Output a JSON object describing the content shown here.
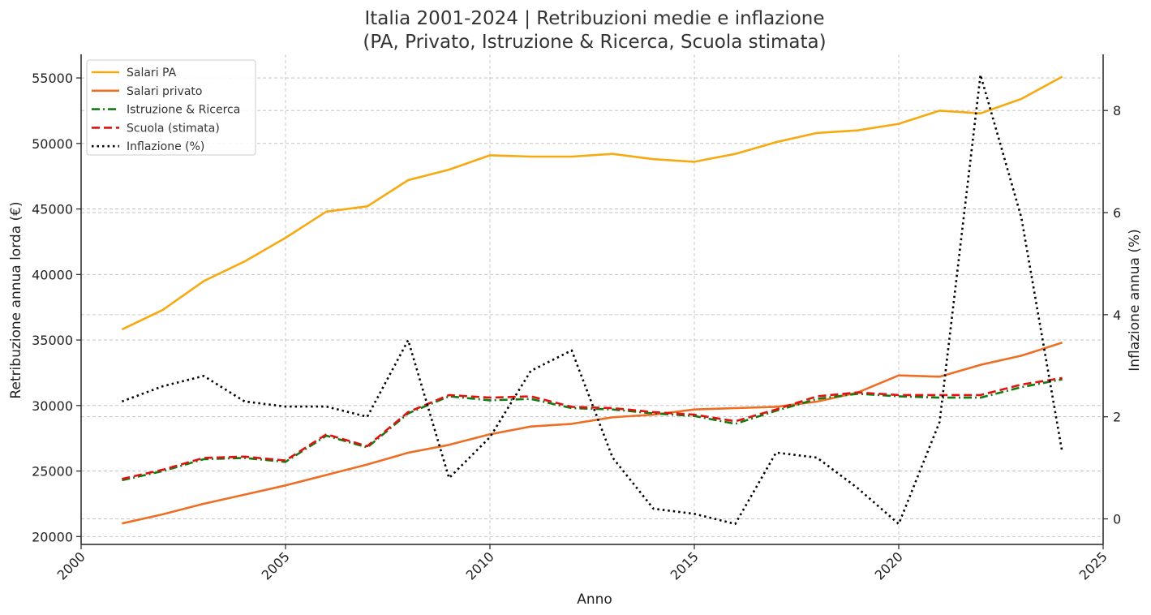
{
  "chart_data": {
    "type": "line",
    "title": "Italia 2001-2024 | Retribuzioni medie e inflazione",
    "subtitle": "(PA, Privato, Istruzione & Ricerca, Scuola stimata)",
    "xlabel": "Anno",
    "ylabel": "Retribuzione annua lorda (€)",
    "y2label": "Inflazione annua (%)",
    "xlim": [
      2000,
      2025
    ],
    "ylim": [
      19400,
      56800
    ],
    "y2lim": [
      -0.5,
      9.1
    ],
    "x_ticks": [
      2000,
      2005,
      2010,
      2015,
      2020,
      2025
    ],
    "y_ticks": [
      20000,
      25000,
      30000,
      35000,
      40000,
      45000,
      50000,
      55000
    ],
    "y2_ticks": [
      0,
      2,
      4,
      6,
      8
    ],
    "grid": true,
    "legend_position": "top-left",
    "x": [
      2001,
      2002,
      2003,
      2004,
      2005,
      2006,
      2007,
      2008,
      2009,
      2010,
      2011,
      2012,
      2013,
      2014,
      2015,
      2016,
      2017,
      2018,
      2019,
      2020,
      2021,
      2022,
      2023,
      2024
    ],
    "series": [
      {
        "name": "Salari PA",
        "axis": "left",
        "color": "#f7aa10",
        "style": "solid",
        "values": [
          35800,
          37300,
          39500,
          41000,
          42800,
          44800,
          45200,
          47200,
          48000,
          49100,
          49000,
          49000,
          49200,
          48800,
          48600,
          49200,
          50100,
          50800,
          51000,
          51500,
          52500,
          52300,
          53400,
          55100
        ]
      },
      {
        "name": "Salari privato",
        "axis": "left",
        "color": "#ee6e24",
        "style": "solid",
        "values": [
          21000,
          21700,
          22500,
          23200,
          23900,
          24700,
          25500,
          26400,
          27000,
          27800,
          28400,
          28600,
          29100,
          29300,
          29700,
          29800,
          29900,
          30300,
          31000,
          32300,
          32200,
          33100,
          33800,
          34800
        ]
      },
      {
        "name": "Istruzione & Ricerca",
        "axis": "left",
        "color": "#127a12",
        "style": "dashdot",
        "values": [
          24300,
          25000,
          25900,
          26000,
          25700,
          27700,
          26800,
          29400,
          30700,
          30400,
          30500,
          29800,
          29700,
          29400,
          29200,
          28600,
          29600,
          30500,
          30900,
          30700,
          30600,
          30600,
          31400,
          32000
        ]
      },
      {
        "name": "Scuola (stimata)",
        "axis": "left",
        "color": "#e0120f",
        "style": "dashed",
        "values": [
          24400,
          25100,
          26000,
          26100,
          25800,
          27800,
          26900,
          29500,
          30800,
          30600,
          30700,
          29900,
          29800,
          29500,
          29300,
          28800,
          29700,
          30700,
          31000,
          30800,
          30800,
          30800,
          31600,
          32100
        ]
      },
      {
        "name": "Inflazione (%)",
        "axis": "right",
        "color": "#000000",
        "style": "dotted",
        "values": [
          2.3,
          2.6,
          2.8,
          2.3,
          2.2,
          2.2,
          2.0,
          3.5,
          0.8,
          1.6,
          2.9,
          3.3,
          1.2,
          0.2,
          0.1,
          -0.1,
          1.3,
          1.2,
          0.6,
          -0.1,
          1.9,
          8.7,
          5.9,
          1.3
        ]
      }
    ]
  }
}
